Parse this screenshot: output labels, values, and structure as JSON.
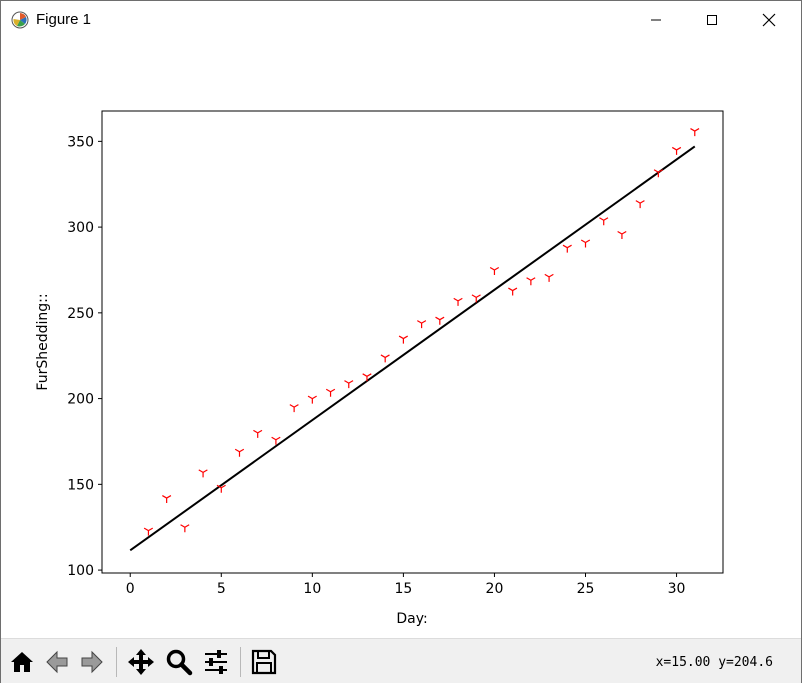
{
  "window": {
    "title": "Figure 1",
    "icons": {
      "app": "matplotlib-icon",
      "minimize": "minimize-icon",
      "maximize": "maximize-icon",
      "close": "close-icon"
    }
  },
  "toolbar": {
    "buttons": [
      {
        "name": "home-button",
        "icon": "home-icon"
      },
      {
        "name": "back-button",
        "icon": "back-arrow-icon"
      },
      {
        "name": "forward-button",
        "icon": "forward-arrow-icon"
      },
      {
        "name": "pan-button",
        "icon": "move-icon"
      },
      {
        "name": "zoom-button",
        "icon": "magnifier-icon"
      },
      {
        "name": "configure-subplots-button",
        "icon": "sliders-icon"
      },
      {
        "name": "save-button",
        "icon": "floppy-disk-icon"
      }
    ],
    "coords": "x=15.00 y=204.6"
  },
  "chart_data": {
    "type": "scatter",
    "title": "",
    "xlabel": "Day:",
    "ylabel": "FurShedding::",
    "xlim": [
      -1.55,
      32.55
    ],
    "ylim": [
      98.3,
      367.7
    ],
    "xticks": [
      0,
      5,
      10,
      15,
      20,
      25,
      30
    ],
    "yticks": [
      100,
      150,
      200,
      250,
      300,
      350
    ],
    "grid": false,
    "legend": "none",
    "series": [
      {
        "marker": "tri_down",
        "color": "#ff0000",
        "x": [
          1,
          2,
          3,
          4,
          5,
          6,
          7,
          8,
          9,
          10,
          11,
          12,
          13,
          14,
          15,
          16,
          17,
          18,
          19,
          20,
          21,
          22,
          23,
          24,
          25,
          26,
          27,
          28,
          29,
          30,
          31
        ],
        "y": [
          123,
          142,
          125,
          157,
          148,
          169,
          180,
          176,
          195,
          200,
          204,
          209,
          213,
          224,
          235,
          244,
          246,
          257,
          259,
          275,
          263,
          269,
          271,
          288,
          291,
          304,
          296,
          314,
          332,
          345,
          356
        ]
      }
    ],
    "fit_line": {
      "color": "#000000",
      "x": [
        0,
        31
      ],
      "y": [
        111.5,
        347.0
      ]
    }
  }
}
